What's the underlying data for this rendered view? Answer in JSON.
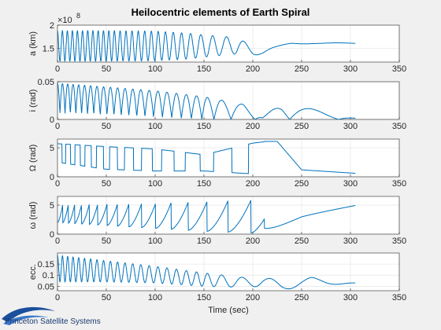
{
  "figure": {
    "title": "Heilocentric elements of Earth Spiral",
    "xlabel": "Time (sec)",
    "logo_text": "Princeton Satellite Systems",
    "background": "#f0f0f0",
    "line_color": "#0072bd"
  },
  "chart_data": [
    {
      "type": "line",
      "ylabel": "a (km)",
      "exponent_label": "×10",
      "exponent_power": "8",
      "xlim": [
        0,
        350
      ],
      "ylim": [
        1.2,
        2.0
      ],
      "xticks": [
        "0",
        "50",
        "100",
        "150",
        "200",
        "250",
        "300",
        "350"
      ],
      "yticks": [
        "1.5",
        "2"
      ],
      "ytick_values": [
        1.5,
        2.0
      ],
      "grid": true,
      "series": [
        {
          "x": [
            0,
            50,
            100,
            130,
            160,
            185,
            200,
            210,
            220,
            240,
            260,
            280,
            305
          ],
          "envelope_low": [
            1.22,
            1.22,
            1.23,
            1.26,
            1.33,
            1.38,
            1.34,
            1.38,
            1.48,
            1.57,
            1.6,
            1.6,
            1.6
          ],
          "envelope_high": [
            1.88,
            1.88,
            1.87,
            1.83,
            1.77,
            1.73,
            1.52,
            1.46,
            1.52,
            1.62,
            1.63,
            1.62,
            1.61
          ],
          "oscillation_periods": [
            5,
            5.5,
            7,
            9,
            13,
            18,
            30,
            40,
            60,
            60,
            60,
            60,
            60
          ]
        }
      ]
    },
    {
      "type": "line",
      "ylabel": "i (rad)",
      "xlim": [
        0,
        350
      ],
      "ylim": [
        0,
        0.05
      ],
      "xticks": [
        "0",
        "50",
        "100",
        "150",
        "200",
        "250",
        "300",
        "350"
      ],
      "yticks": [
        "0",
        "0.05"
      ],
      "ytick_values": [
        0,
        0.05
      ],
      "grid": true,
      "series": [
        {
          "x": [
            0,
            50,
            100,
            150,
            190,
            210,
            230,
            260,
            305
          ],
          "envelope_low": [
            0.008,
            0.006,
            0.003,
            0.0,
            0.0,
            0.0,
            0.0,
            0.0,
            0.0
          ],
          "envelope_high": [
            0.048,
            0.043,
            0.038,
            0.03,
            0.02,
            0.003,
            0.022,
            0.014,
            0.002
          ]
        }
      ]
    },
    {
      "type": "line",
      "ylabel": "Ω (rad)",
      "xlim": [
        0,
        350
      ],
      "ylim": [
        0,
        6.5
      ],
      "xticks": [
        "0",
        "50",
        "100",
        "150",
        "200",
        "250",
        "300",
        "350"
      ],
      "yticks": [
        "0",
        "5"
      ],
      "ytick_values": [
        0,
        5
      ],
      "grid": true,
      "series": [
        {
          "x": [
            0,
            50,
            100,
            150,
            200,
            215,
            225,
            250,
            305
          ],
          "values_high": [
            5.7,
            5.2,
            4.8,
            3.8,
            5.8,
            6.1,
            6.1,
            1.2,
            0.6
          ],
          "values_low": [
            2.5,
            1.3,
            1.0,
            1.0,
            0.5,
            0.2,
            0.6,
            1.2,
            0.6
          ]
        }
      ]
    },
    {
      "type": "line",
      "ylabel": "ω (rad)",
      "xlim": [
        0,
        350
      ],
      "ylim": [
        0,
        6.5
      ],
      "xticks": [
        "0",
        "50",
        "100",
        "150",
        "200",
        "250",
        "300",
        "350"
      ],
      "yticks": [
        "0",
        "5"
      ],
      "ytick_values": [
        0,
        5
      ],
      "grid": true,
      "series": [
        {
          "x": [
            0,
            50,
            100,
            150,
            200,
            212,
            250,
            305
          ],
          "sawtooth_low": [
            2.0,
            1.5,
            1.0,
            0.5,
            0.2,
            0.5,
            2.8,
            4.2
          ],
          "sawtooth_high": [
            5.0,
            5.2,
            5.3,
            5.6,
            5.9,
            6.2,
            3.0,
            4.4
          ]
        }
      ]
    },
    {
      "type": "line",
      "ylabel": "ecc.",
      "xlim": [
        0,
        350
      ],
      "ylim": [
        0.03,
        0.2
      ],
      "xticks": [
        "0",
        "50",
        "100",
        "150",
        "200",
        "250",
        "300",
        "350"
      ],
      "yticks": [
        "0.05",
        "0.1",
        "0.15"
      ],
      "ytick_values": [
        0.05,
        0.1,
        0.15
      ],
      "grid": true,
      "series": [
        {
          "x": [
            0,
            50,
            100,
            150,
            190,
            210,
            230,
            260,
            305
          ],
          "envelope_low": [
            0.07,
            0.07,
            0.065,
            0.05,
            0.045,
            0.05,
            0.035,
            0.05,
            0.065
          ],
          "envelope_high": [
            0.19,
            0.165,
            0.14,
            0.11,
            0.09,
            0.095,
            0.07,
            0.09,
            0.065
          ]
        }
      ]
    }
  ]
}
